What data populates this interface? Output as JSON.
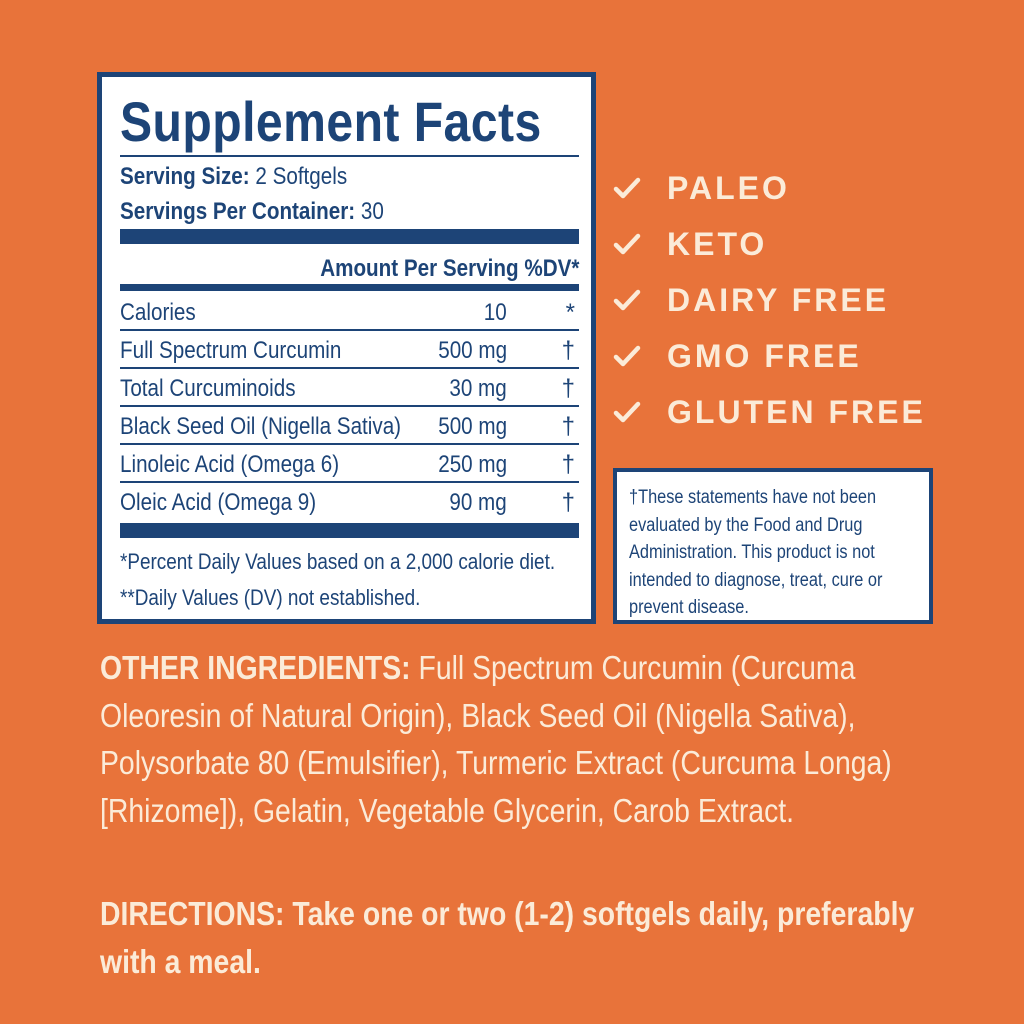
{
  "facts": {
    "title": "Supplement Facts",
    "serving_size_label": "Serving Size:",
    "serving_size_value": "2 Softgels",
    "servings_label": "Servings Per Container:",
    "servings_value": "30",
    "header": "Amount Per Serving %DV*",
    "rows": [
      {
        "name": "Calories",
        "amount": "10",
        "dv": "*"
      },
      {
        "name": "Full Spectrum Curcumin",
        "amount": "500 mg",
        "dv": "†"
      },
      {
        "name": "Total Curcuminoids",
        "amount": "30 mg",
        "dv": "†"
      },
      {
        "name": "Black Seed Oil (Nigella Sativa)",
        "amount": "500 mg",
        "dv": "†"
      },
      {
        "name": "Linoleic Acid (Omega 6)",
        "amount": "250 mg",
        "dv": "†"
      },
      {
        "name": "Oleic Acid (Omega 9)",
        "amount": "90 mg",
        "dv": "†"
      }
    ],
    "footnote1": "*Percent Daily Values based on a 2,000 calorie diet.",
    "footnote2": "**Daily Values (DV) not established."
  },
  "claims": [
    {
      "icon": "checkmark-icon",
      "label": "PALEO"
    },
    {
      "icon": "checkmark-icon",
      "label": "KETO"
    },
    {
      "icon": "checkmark-icon",
      "label": "DAIRY FREE"
    },
    {
      "icon": "checkmark-icon",
      "label": "GMO FREE"
    },
    {
      "icon": "checkmark-icon",
      "label": "GLUTEN FREE"
    }
  ],
  "disclaimer": "†These statements have not been evaluated by the Food and Drug Administration. This product is not intended to diagnose, treat, cure or prevent disease.",
  "other_ingredients": {
    "label": "OTHER INGREDIENTS:",
    "text": "Full Spectrum Curcumin (Curcuma Oleoresin of Natural Origin), Black Seed Oil (Nigella Sativa), Polysorbate 80 (Emulsifier), Turmeric Extract (Curcuma Longa) [Rhizome]), Gelatin, Vegetable Glycerin, Carob Extract."
  },
  "directions": {
    "label": "DIRECTIONS:",
    "text": "Take one or two (1-2) softgels daily, preferably with a meal."
  },
  "colors": {
    "background": "#E8733A",
    "navy": "#1D4477",
    "cream": "#FBEBD8"
  }
}
